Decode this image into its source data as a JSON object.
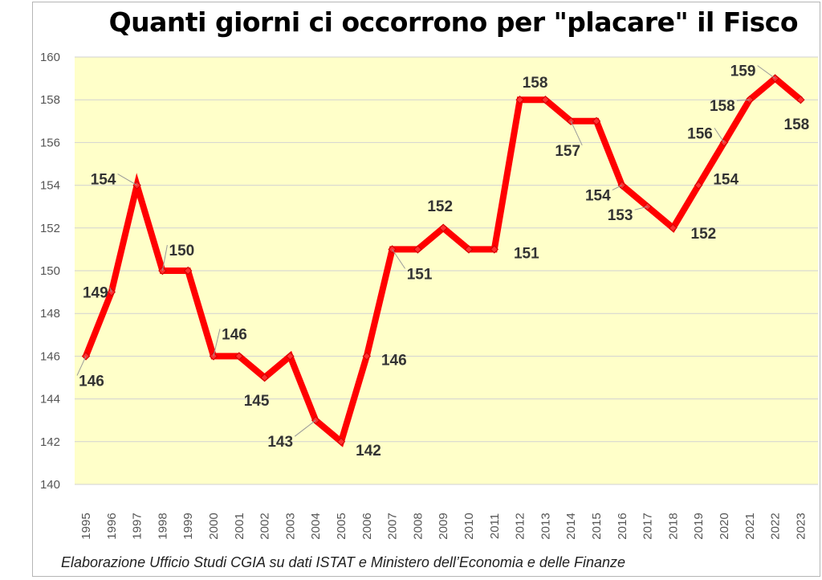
{
  "chart_data": {
    "type": "line",
    "title": "Quanti giorni ci occorrono per \"placare\" il Fisco",
    "source": "Elaborazione Ufficio Studi CGIA su dati ISTAT e Ministero dell’Economia e delle Finanze",
    "xlabel": "",
    "ylabel": "",
    "ylim": [
      140,
      160
    ],
    "yticks": [
      140,
      142,
      144,
      146,
      148,
      150,
      152,
      154,
      156,
      158,
      160
    ],
    "grid": true,
    "colors": {
      "line": "#ff0000",
      "plot_bg": "#ffffc9",
      "grid": "#d2d2d2"
    },
    "categories": [
      "1995",
      "1996",
      "1997",
      "1998",
      "1999",
      "2000",
      "2001",
      "2002",
      "2003",
      "2004",
      "2005",
      "2006",
      "2007",
      "2008",
      "2009",
      "2010",
      "2011",
      "2012",
      "2013",
      "2014",
      "2015",
      "2016",
      "2017",
      "2018",
      "2019",
      "2020",
      "2021",
      "2022",
      "2023"
    ],
    "series": [
      {
        "values": [
          146,
          149,
          154,
          150,
          150,
          146,
          146,
          145,
          146,
          143,
          142,
          146,
          151,
          151,
          152,
          151,
          151,
          158,
          158,
          157,
          157,
          154,
          153,
          152,
          154,
          156,
          158,
          159,
          158
        ]
      }
    ],
    "labels": [
      {
        "i": 0,
        "text": "146"
      },
      {
        "i": 1,
        "text": "149"
      },
      {
        "i": 2,
        "text": "154"
      },
      {
        "i": 3,
        "text": "150"
      },
      {
        "i": 5,
        "text": "146"
      },
      {
        "i": 7,
        "text": "145"
      },
      {
        "i": 9,
        "text": "143"
      },
      {
        "i": 10,
        "text": "142"
      },
      {
        "i": 11,
        "text": "146"
      },
      {
        "i": 12,
        "text": "151"
      },
      {
        "i": 14,
        "text": "152"
      },
      {
        "i": 16,
        "text": "151"
      },
      {
        "i": 17,
        "text": "158"
      },
      {
        "i": 19,
        "text": "157"
      },
      {
        "i": 21,
        "text": "154"
      },
      {
        "i": 22,
        "text": "153"
      },
      {
        "i": 23,
        "text": "152"
      },
      {
        "i": 24,
        "text": "154"
      },
      {
        "i": 25,
        "text": "156"
      },
      {
        "i": 26,
        "text": "158"
      },
      {
        "i": 27,
        "text": "159"
      },
      {
        "i": 28,
        "text": "158"
      }
    ]
  }
}
